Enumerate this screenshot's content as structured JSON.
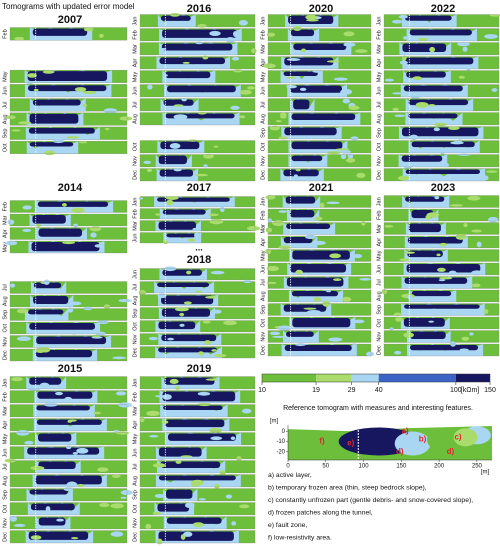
{
  "title": "Tomograms with updated error model",
  "panels": [
    {
      "year": "2007",
      "months": [
        "Feb",
        null,
        null,
        "May",
        "Jun",
        "Jul",
        "Aug",
        "Sep",
        "Oct"
      ]
    },
    {
      "year": "2016",
      "months": [
        "Jan",
        "Feb",
        "Mar",
        "Apr",
        "May",
        "Jun",
        "Jul",
        "Aug",
        null,
        "Oct",
        "Nov",
        "Dec"
      ]
    },
    {
      "year": "2020",
      "months": [
        "Jan",
        "Feb",
        "Mar",
        "Apr",
        "May",
        "Jun",
        "Jul",
        "Aug",
        "Sep",
        "Oct",
        "Nov",
        "Dec"
      ]
    },
    {
      "year": "2022",
      "months": [
        "Jan",
        "Feb",
        "Mar",
        "Apr",
        "May",
        "Jun",
        "Jul",
        "Aug",
        "Sep",
        "Oct",
        "Nov",
        "Dec"
      ]
    },
    {
      "year": "2014",
      "months": [
        "Feb",
        "Mar",
        "Apr",
        "May",
        null,
        null,
        "Jul",
        "Aug",
        "Sep",
        "Oct",
        "Nov",
        "Dec"
      ]
    },
    {
      "year": "2017",
      "months": [
        "Jan",
        "Feb",
        "Mar",
        "Jun",
        "..."
      ]
    },
    {
      "year": "2018",
      "months": [
        "Jun",
        "Jul",
        "Aug",
        "Sep",
        "Oct",
        "Nov",
        "Dec"
      ]
    },
    {
      "year": "2021",
      "months": [
        "Jan",
        "Feb",
        "Mar",
        "Apr",
        "May",
        "Jun",
        "Jul",
        "Aug",
        "Sep",
        "Oct",
        "Nov",
        "Dec"
      ]
    },
    {
      "year": "2023",
      "months": [
        "Jan",
        "Feb",
        "Mar",
        "Apr",
        "May",
        "Jun",
        "Jul",
        "Aug",
        "Sep",
        "Oct",
        "Nov",
        "Dec"
      ]
    },
    {
      "year": "2015",
      "months": [
        "Jan",
        "Feb",
        "Mar",
        "Apr",
        "May",
        "Jun",
        "Jul",
        "Aug",
        "Sep",
        "Oct",
        "Nov",
        "Dec"
      ]
    },
    {
      "year": "2019",
      "months": [
        "Jan",
        "Feb",
        "Mar",
        "Apr",
        "May",
        "Jun",
        "Jul",
        "Aug",
        "Sep",
        "Oct",
        "Nov",
        "Dec"
      ]
    }
  ],
  "colorbar": {
    "ticks": [
      10,
      19,
      29,
      40,
      100,
      150
    ],
    "lim": [
      10,
      150
    ],
    "scale": "log",
    "unit": "[kΩm]",
    "colors": [
      "#6dbf3b",
      "#a9dc6c",
      "#a8d6f3",
      "#3b64c6",
      "#16175f"
    ]
  },
  "reference": {
    "title": "Reference tomogram with measures and interesting features.",
    "xlim": [
      0,
      270
    ],
    "ylim": [
      -28,
      6
    ],
    "xticks": [
      0,
      50,
      100,
      150,
      200,
      250
    ],
    "yticks": [
      0,
      -10,
      -20
    ],
    "xunit": "[m]",
    "yunit": "[m]",
    "labels": [
      "f)",
      "e)",
      "a)",
      "d)",
      "b)",
      "c)",
      "d)"
    ]
  },
  "legend": [
    "a) active layer,",
    "b) temporary frozen area (thin, steep bedrock slope),",
    "c) constantly unfrozen part (gentle debris- and snow-covered slope),",
    "d) frozen patches along the tunnel,",
    "e) fault zone,",
    "f) low-resistivity area."
  ]
}
